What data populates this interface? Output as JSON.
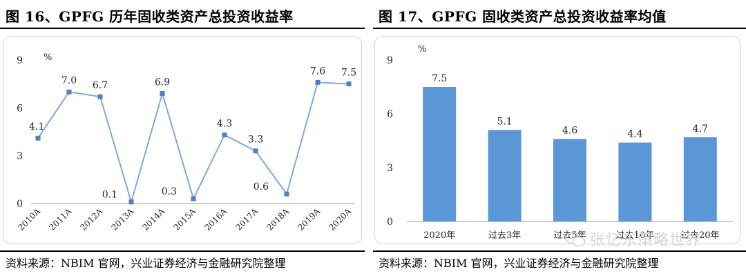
{
  "left": {
    "title": "图 16、GPFG 历年固收类资产总投资收益率",
    "source": "资料来源：NBIM 官网，兴业证券经济与金融研究院整理"
  },
  "right": {
    "title": "图 17、GPFG 固收类资产总投资收益率均值",
    "source": "资料来源：NBIM 官网，兴业证券经济与金融研究院整理"
  },
  "watermark": "张忆东策略世界",
  "colors": {
    "line": "#7fa8d8",
    "marker": "#4f7fbf",
    "bar": "#5b97d5",
    "axis": "#9a9a9a"
  },
  "chart_data": [
    {
      "type": "line",
      "title": "GPFG 历年固收类资产总投资收益率",
      "unit": "%",
      "categories": [
        "2010A",
        "2011A",
        "2012A",
        "2013A",
        "2014A",
        "2015A",
        "2016A",
        "2017A",
        "2018A",
        "2019A",
        "2020A"
      ],
      "values": [
        4.1,
        7.0,
        6.7,
        0.1,
        6.9,
        0.3,
        4.3,
        3.3,
        0.6,
        7.6,
        7.5
      ],
      "data_labels": [
        "4.1",
        "7.0",
        "6.7",
        "0.1",
        "6.9",
        "0.3",
        "4.3",
        "3.3",
        "0.6",
        "7.6",
        "7.5"
      ],
      "y_ticks": [
        "0",
        "3",
        "6",
        "9"
      ],
      "ylim": [
        0,
        9
      ],
      "xlabel": "",
      "ylabel": "%"
    },
    {
      "type": "bar",
      "title": "GPFG 固收类资产总投资收益率均值",
      "unit": "%",
      "categories": [
        "2020年",
        "过去3年",
        "过去5年",
        "过去10年",
        "过去20年"
      ],
      "values": [
        7.5,
        5.1,
        4.6,
        4.4,
        4.7
      ],
      "data_labels": [
        "7.5",
        "5.1",
        "4.6",
        "4.4",
        "4.7"
      ],
      "y_ticks": [
        "0",
        "3",
        "6",
        "9"
      ],
      "ylim": [
        0,
        9
      ],
      "xlabel": "",
      "ylabel": "%"
    }
  ]
}
